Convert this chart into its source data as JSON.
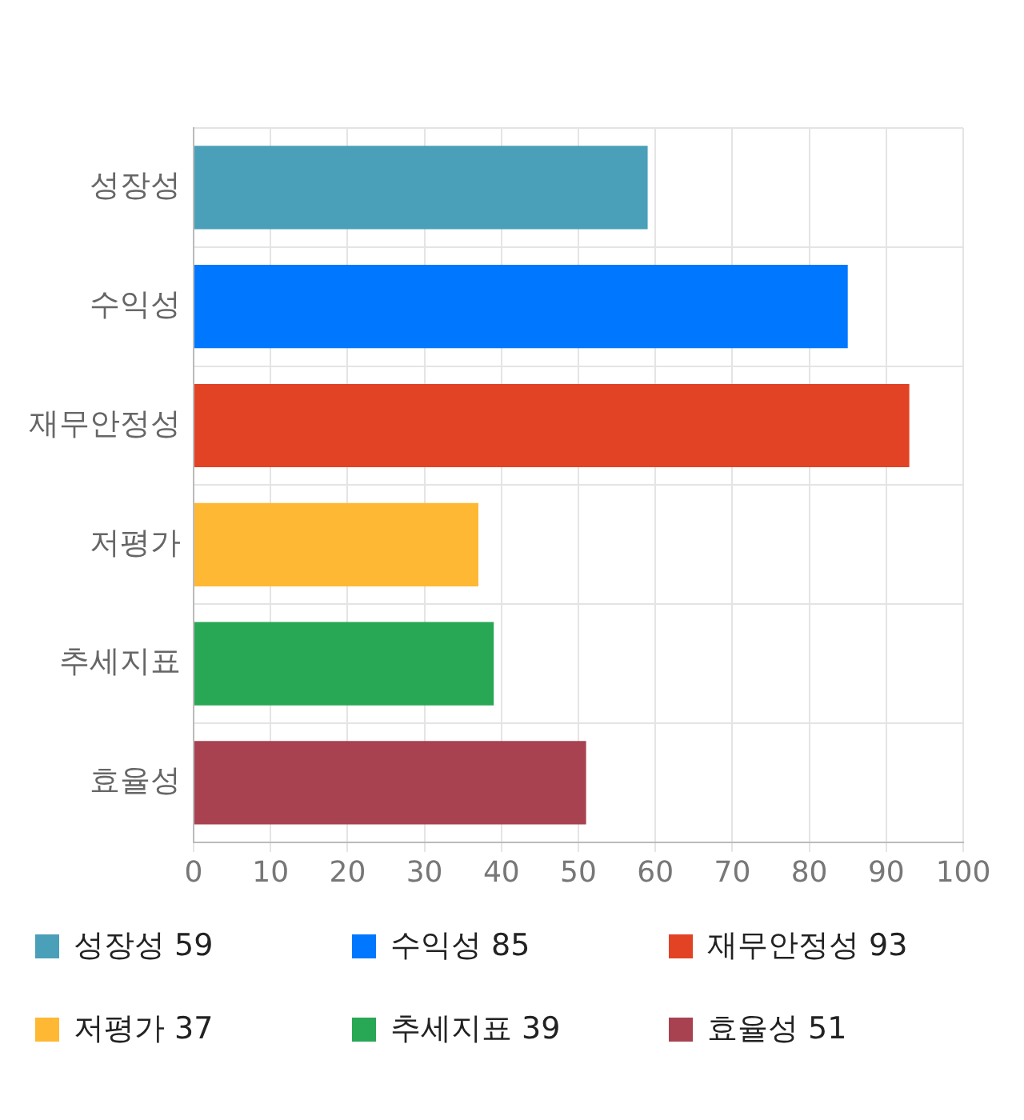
{
  "chart_data": {
    "type": "bar",
    "orientation": "horizontal",
    "stacked": true,
    "categories": [
      "성장성",
      "수익성",
      "재무안정성",
      "저평가",
      "추세지표",
      "효율성"
    ],
    "series": [
      {
        "name": "성장성 59",
        "color": "#4aa0b8",
        "values": [
          59,
          null,
          null,
          null,
          null,
          null
        ]
      },
      {
        "name": "수익성 85",
        "color": "#0077ff",
        "values": [
          null,
          85,
          null,
          null,
          null,
          null
        ]
      },
      {
        "name": "재무안정성 93",
        "color": "#e24324",
        "values": [
          null,
          null,
          93,
          null,
          null,
          null
        ]
      },
      {
        "name": "저평가 37",
        "color": "#ffb833",
        "values": [
          null,
          null,
          null,
          37,
          null,
          null
        ]
      },
      {
        "name": "추세지표 39",
        "color": "#28a755",
        "values": [
          null,
          null,
          null,
          null,
          39,
          null
        ]
      },
      {
        "name": "효율성 51",
        "color": "#a84150",
        "values": [
          null,
          null,
          null,
          null,
          null,
          51
        ]
      }
    ],
    "xlim": [
      0,
      100
    ],
    "xticks": [
      0,
      10,
      20,
      30,
      40,
      50,
      60,
      70,
      80,
      90,
      100
    ],
    "grid": true,
    "legend": "bottom"
  }
}
